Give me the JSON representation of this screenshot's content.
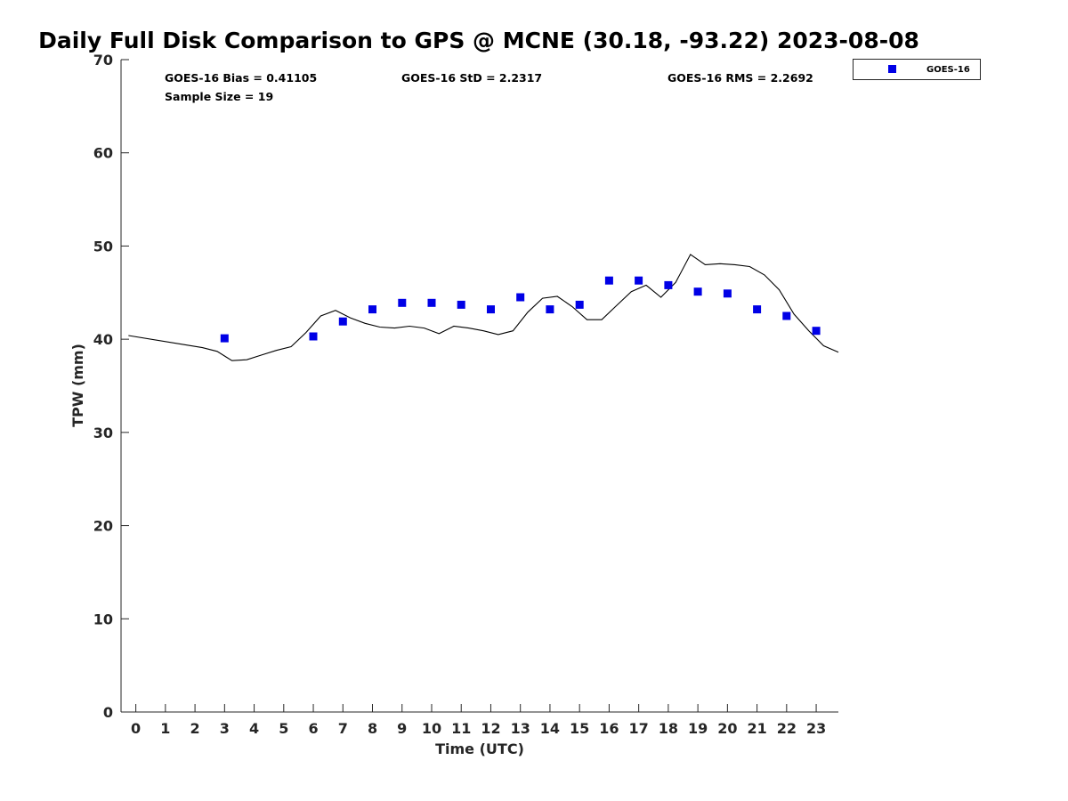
{
  "chart_data": {
    "type": "scatter",
    "title": "Daily Full Disk Comparison to GPS @ MCNE (30.18, -93.22) 2023-08-08",
    "xlabel": "Time (UTC)",
    "ylabel": "TPW (mm)",
    "xlim": [
      -0.5,
      23.75
    ],
    "ylim": [
      0,
      70
    ],
    "x_ticks": [
      "0",
      "1",
      "2",
      "3",
      "4",
      "5",
      "6",
      "7",
      "8",
      "9",
      "10",
      "11",
      "12",
      "13",
      "14",
      "15",
      "16",
      "17",
      "18",
      "19",
      "20",
      "21",
      "22",
      "23"
    ],
    "y_ticks": [
      "0",
      "10",
      "20",
      "30",
      "40",
      "50",
      "60",
      "70"
    ],
    "grid": false,
    "legend_position": "outside-top-right",
    "stats": {
      "bias": "GOES-16 Bias = 0.41105",
      "std": "GOES-16 StD = 2.2317",
      "rms": "GOES-16 RMS = 2.2692",
      "sample": "Sample Size = 19"
    },
    "series": [
      {
        "name": "GOES-16",
        "kind": "scatter",
        "marker": "square",
        "color": "#0000e6",
        "points": [
          [
            3,
            40.1
          ],
          [
            6,
            40.3
          ],
          [
            7,
            41.9
          ],
          [
            8,
            43.2
          ],
          [
            9,
            43.9
          ],
          [
            10,
            43.9
          ],
          [
            11,
            43.7
          ],
          [
            12,
            43.2
          ],
          [
            13,
            44.5
          ],
          [
            14,
            43.2
          ],
          [
            15,
            43.7
          ],
          [
            16,
            46.3
          ],
          [
            17,
            46.3
          ],
          [
            18,
            45.8
          ],
          [
            19,
            45.1
          ],
          [
            20,
            44.9
          ],
          [
            21,
            43.2
          ],
          [
            22,
            42.5
          ],
          [
            23,
            40.9
          ]
        ]
      },
      {
        "kind": "line",
        "color": "#000000",
        "points": [
          [
            -0.25,
            40.4
          ],
          [
            2.25,
            39.1
          ],
          [
            2.75,
            38.7
          ],
          [
            3.25,
            37.7
          ],
          [
            3.75,
            37.8
          ],
          [
            4.25,
            38.3
          ],
          [
            4.75,
            38.8
          ],
          [
            5.25,
            39.2
          ],
          [
            5.75,
            40.7
          ],
          [
            6.25,
            42.5
          ],
          [
            6.75,
            43.1
          ],
          [
            7.25,
            42.3
          ],
          [
            7.75,
            41.7
          ],
          [
            8.25,
            41.3
          ],
          [
            8.75,
            41.2
          ],
          [
            9.25,
            41.4
          ],
          [
            9.75,
            41.2
          ],
          [
            10.25,
            40.6
          ],
          [
            10.75,
            41.4
          ],
          [
            11.25,
            41.2
          ],
          [
            11.75,
            40.9
          ],
          [
            12.25,
            40.5
          ],
          [
            12.75,
            40.9
          ],
          [
            13.25,
            42.9
          ],
          [
            13.75,
            44.4
          ],
          [
            14.25,
            44.6
          ],
          [
            14.75,
            43.5
          ],
          [
            15.25,
            42.1
          ],
          [
            15.75,
            42.1
          ],
          [
            16.25,
            43.6
          ],
          [
            16.75,
            45.1
          ],
          [
            17.25,
            45.8
          ],
          [
            17.75,
            44.5
          ],
          [
            18.25,
            46.1
          ],
          [
            18.75,
            49.1
          ],
          [
            19.25,
            48.0
          ],
          [
            19.75,
            48.1
          ],
          [
            20.25,
            48.0
          ],
          [
            20.75,
            47.8
          ],
          [
            21.25,
            46.9
          ],
          [
            21.75,
            45.3
          ],
          [
            22.25,
            42.7
          ],
          [
            22.75,
            40.9
          ],
          [
            23.25,
            39.3
          ],
          [
            23.75,
            38.6
          ]
        ]
      }
    ]
  }
}
